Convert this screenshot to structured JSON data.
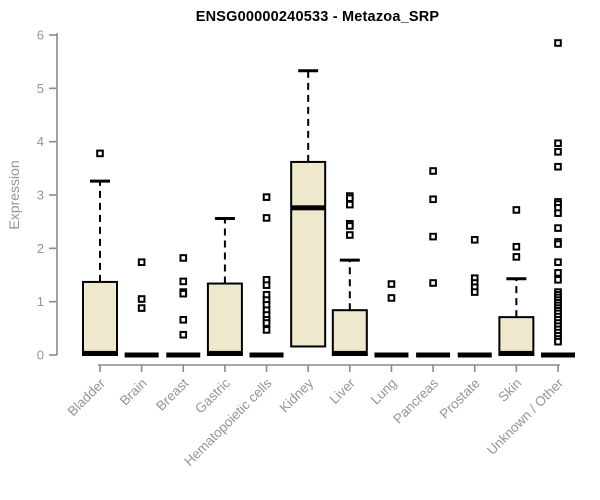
{
  "chart_data": {
    "type": "boxplot",
    "title": "ENSG00000240533 - Metazoa_SRP",
    "ylabel": "Expression",
    "xlabel": "",
    "ylim": [
      0,
      6
    ],
    "yticks": [
      0,
      1,
      2,
      3,
      4,
      5,
      6
    ],
    "grid": "off",
    "legend": "none",
    "categories": [
      "Bladder",
      "Brain",
      "Breast",
      "Gastric",
      "Hematopoietic cells",
      "Kidney",
      "Liver",
      "Lung",
      "Pancreas",
      "Prostate",
      "Skin",
      "Unknown / Other"
    ],
    "series": [
      {
        "category": "Bladder",
        "q1": 0,
        "median": 0.03,
        "q3": 1.37,
        "whisker_low": 0,
        "whisker_high": 3.26,
        "outliers": [
          3.78
        ]
      },
      {
        "category": "Brain",
        "q1": 0,
        "median": 0,
        "q3": 0,
        "whisker_low": 0,
        "whisker_high": 0,
        "outliers": [
          1.74,
          1.05,
          0.88
        ]
      },
      {
        "category": "Breast",
        "q1": 0,
        "median": 0,
        "q3": 0,
        "whisker_low": 0,
        "whisker_high": 0,
        "outliers": [
          1.82,
          1.38,
          1.18,
          1.15,
          0.66,
          0.38
        ]
      },
      {
        "category": "Gastric",
        "q1": 0,
        "median": 0.03,
        "q3": 1.34,
        "whisker_low": 0,
        "whisker_high": 2.56,
        "outliers": []
      },
      {
        "category": "Hematopoietic cells",
        "q1": 0,
        "median": 0,
        "q3": 0,
        "whisker_low": 0,
        "whisker_high": 0,
        "outliers": [
          2.96,
          2.57,
          1.41,
          1.31,
          1.13,
          1.03,
          0.94,
          0.84,
          0.75,
          0.66,
          0.6,
          0.47
        ]
      },
      {
        "category": "Kidney",
        "q1": 0.16,
        "median": 2.76,
        "q3": 3.62,
        "whisker_low": 0.16,
        "whisker_high": 5.33,
        "outliers": []
      },
      {
        "category": "Liver",
        "q1": 0,
        "median": 0.03,
        "q3": 0.84,
        "whisker_low": 0,
        "whisker_high": 1.78,
        "outliers": [
          2.98,
          2.94,
          2.82,
          2.46,
          2.42,
          2.25
        ]
      },
      {
        "category": "Lung",
        "q1": 0,
        "median": 0,
        "q3": 0,
        "whisker_low": 0,
        "whisker_high": 0,
        "outliers": [
          1.33,
          1.07
        ]
      },
      {
        "category": "Pancreas",
        "q1": 0,
        "median": 0,
        "q3": 0,
        "whisker_low": 0,
        "whisker_high": 0,
        "outliers": [
          3.45,
          2.92,
          2.22,
          1.35
        ]
      },
      {
        "category": "Prostate",
        "q1": 0,
        "median": 0,
        "q3": 0,
        "whisker_low": 0,
        "whisker_high": 0,
        "outliers": [
          2.16,
          1.44,
          1.35,
          1.27,
          1.18
        ]
      },
      {
        "category": "Skin",
        "q1": 0,
        "median": 0.03,
        "q3": 0.71,
        "whisker_low": 0,
        "whisker_high": 1.43,
        "outliers": [
          2.72,
          2.03,
          1.84
        ]
      },
      {
        "category": "Unknown / Other",
        "q1": 0,
        "median": 0,
        "q3": 0,
        "whisker_low": 0,
        "whisker_high": 0,
        "outliers": [
          5.85,
          3.97,
          3.81,
          3.53,
          2.87,
          2.83,
          2.76,
          2.66,
          2.38,
          2.12,
          2.08,
          1.74,
          1.54,
          1.41,
          1.18,
          1.13,
          1.08,
          1.03,
          0.98,
          0.93,
          0.88,
          0.83,
          0.78,
          0.72,
          0.66,
          0.6,
          0.54,
          0.48,
          0.42,
          0.36,
          0.3,
          0.25
        ]
      }
    ],
    "colors": {
      "box_fill": "#EEE8CD",
      "box_stroke": "#000000",
      "median": "#000000",
      "outlier_stroke": "#000000",
      "axis": "#8A8A8A",
      "tick_label": "#959595",
      "title": "#000000",
      "background": "#FFFFFF"
    }
  }
}
